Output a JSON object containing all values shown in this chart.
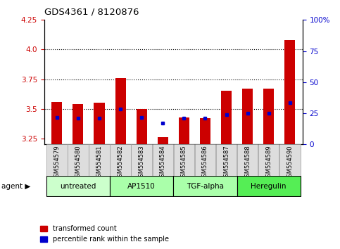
{
  "title": "GDS4361 / 8120876",
  "samples": [
    "GSM554579",
    "GSM554580",
    "GSM554581",
    "GSM554582",
    "GSM554583",
    "GSM554584",
    "GSM554585",
    "GSM554586",
    "GSM554587",
    "GSM554588",
    "GSM554589",
    "GSM554590"
  ],
  "red_values": [
    3.56,
    3.54,
    3.55,
    3.76,
    3.5,
    3.26,
    3.43,
    3.42,
    3.65,
    3.67,
    3.67,
    4.08
  ],
  "blue_values": [
    3.43,
    3.42,
    3.42,
    3.5,
    3.43,
    3.38,
    3.42,
    3.42,
    3.45,
    3.46,
    3.46,
    3.55
  ],
  "ylim_left": [
    3.2,
    4.25
  ],
  "ylim_right": [
    0,
    100
  ],
  "yticks_left": [
    3.25,
    3.5,
    3.75,
    4.0,
    4.25
  ],
  "yticks_right": [
    0,
    25,
    50,
    75,
    100
  ],
  "grid_lines": [
    3.5,
    3.75,
    4.0
  ],
  "agent_groups": [
    {
      "label": "untreated",
      "indices": [
        0,
        1,
        2
      ],
      "color": "#ccffcc"
    },
    {
      "label": "AP1510",
      "indices": [
        3,
        4,
        5
      ],
      "color": "#aaffaa"
    },
    {
      "label": "TGF-alpha",
      "indices": [
        6,
        7,
        8
      ],
      "color": "#aaffaa"
    },
    {
      "label": "Heregulin",
      "indices": [
        9,
        10,
        11
      ],
      "color": "#55ee55"
    }
  ],
  "bar_width": 0.5,
  "red_color": "#cc0000",
  "blue_color": "#0000cc",
  "left_axis_color": "#cc0000",
  "right_axis_color": "#0000cc",
  "baseline": 3.2,
  "legend_red_label": "transformed count",
  "legend_blue_label": "percentile rank within the sample"
}
